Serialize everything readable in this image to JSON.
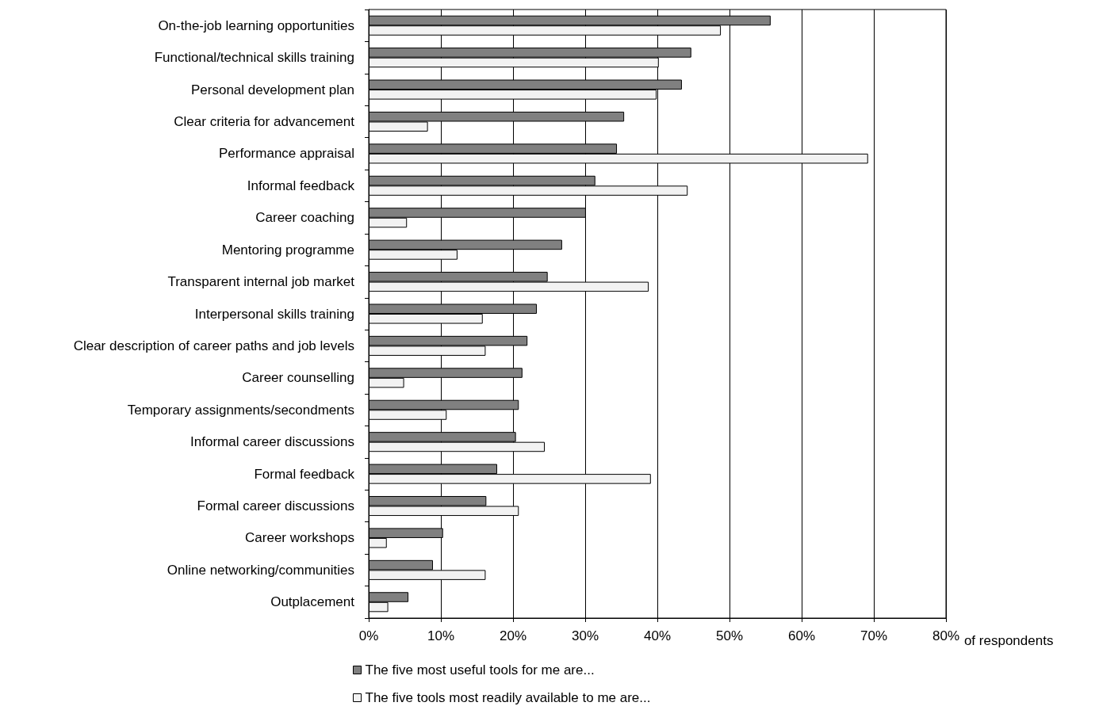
{
  "chart_data": {
    "type": "bar",
    "orientation": "horizontal",
    "xlabel": "of respondents",
    "categories": [
      "On-the-job learning opportunities",
      "Functional/technical skills training",
      "Personal development plan",
      "Clear criteria for advancement",
      "Performance appraisal",
      "Informal feedback",
      "Career coaching",
      "Mentoring programme",
      "Transparent internal job market",
      "Interpersonal skills training",
      "Clear description of career paths and job levels",
      "Career counselling",
      "Temporary assignments/secondments",
      "Informal career discussions",
      "Formal feedback",
      "Formal career discussions",
      "Career workshops",
      "Online networking/communities",
      "Outplacement"
    ],
    "series": [
      {
        "name": "The five most useful tools for me are...",
        "color": "#808080",
        "values": [
          55.7,
          44.7,
          43.4,
          35.4,
          34.4,
          31.4,
          30.1,
          26.8,
          24.8,
          23.3,
          22.0,
          21.3,
          20.8,
          20.4,
          17.8,
          16.3,
          10.3,
          8.9,
          5.5
        ]
      },
      {
        "name": "The five tools most readily available to me are...",
        "color": "#f2f2f2",
        "values": [
          48.8,
          40.2,
          39.9,
          8.2,
          69.2,
          44.2,
          5.3,
          12.3,
          38.8,
          15.8,
          16.2,
          4.9,
          10.8,
          24.4,
          39.1,
          20.8,
          2.5,
          16.2,
          2.7
        ]
      }
    ],
    "xlim": [
      0,
      80
    ],
    "xticks": [
      {
        "value": 0,
        "label": "0%"
      },
      {
        "value": 10,
        "label": "10%"
      },
      {
        "value": 20,
        "label": "20%"
      },
      {
        "value": 30,
        "label": "30%"
      },
      {
        "value": 40,
        "label": "40%"
      },
      {
        "value": 50,
        "label": "50%"
      },
      {
        "value": 60,
        "label": "60%"
      },
      {
        "value": 70,
        "label": "70%"
      },
      {
        "value": 80,
        "label": "80%"
      }
    ],
    "grid": "x",
    "legend": "bottom"
  }
}
